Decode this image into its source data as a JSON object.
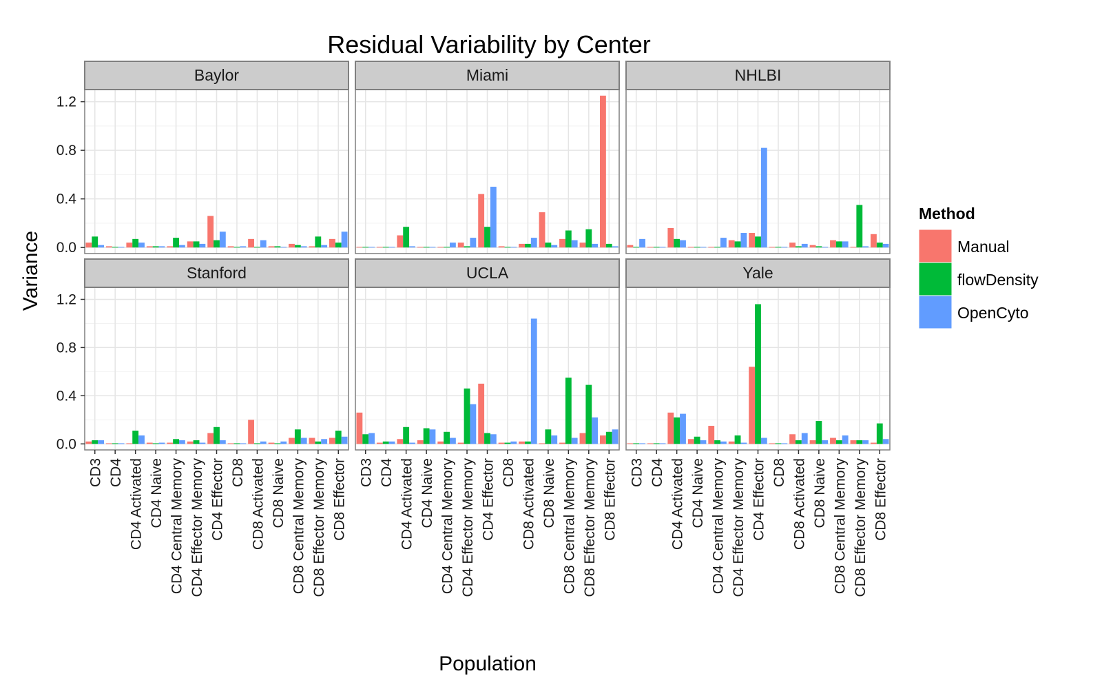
{
  "chart_data": {
    "type": "bar",
    "title": "Residual Variability by Center",
    "xlabel": "Population",
    "ylabel": "Variance",
    "ylim": [
      -0.05,
      1.3
    ],
    "yticks": [
      0.0,
      0.4,
      0.8,
      1.2
    ],
    "ytick_labels": [
      "0.0",
      "0.4",
      "0.8",
      "1.2"
    ],
    "grid": true,
    "legend": {
      "title": "Method",
      "position": "right",
      "entries": [
        {
          "name": "Manual",
          "color": "#F8766D"
        },
        {
          "name": "flowDensity",
          "color": "#00BA38"
        },
        {
          "name": "OpenCyto",
          "color": "#619CFF"
        }
      ]
    },
    "categories": [
      "CD3",
      "CD4",
      "CD4 Activated",
      "CD4 Naive",
      "CD4 Central Memory",
      "CD4 Effector Memory",
      "CD4 Effector",
      "CD8",
      "CD8 Activated",
      "CD8 Naive",
      "CD8 Central Memory",
      "CD8 Effector Memory",
      "CD8 Effector"
    ],
    "facets": [
      {
        "name": "Baylor",
        "series": [
          {
            "name": "Manual",
            "values": [
              0.04,
              0.01,
              0.04,
              0.01,
              0.01,
              0.05,
              0.26,
              0.01,
              0.07,
              0.01,
              0.03,
              0.01,
              0.07
            ]
          },
          {
            "name": "flowDensity",
            "values": [
              0.09,
              0.005,
              0.07,
              0.01,
              0.08,
              0.05,
              0.06,
              0.005,
              0.005,
              0.01,
              0.02,
              0.09,
              0.04
            ]
          },
          {
            "name": "OpenCyto",
            "values": [
              0.02,
              0.005,
              0.04,
              0.01,
              0.02,
              0.03,
              0.13,
              0.01,
              0.06,
              0.005,
              0.01,
              0.02,
              0.13
            ]
          }
        ]
      },
      {
        "name": "Miami",
        "series": [
          {
            "name": "Manual",
            "values": [
              0.005,
              0.005,
              0.1,
              0.005,
              0.005,
              0.04,
              0.44,
              0.01,
              0.03,
              0.29,
              0.07,
              0.04,
              1.25
            ]
          },
          {
            "name": "flowDensity",
            "values": [
              0.005,
              0.005,
              0.17,
              0.005,
              0.005,
              0.01,
              0.17,
              0.005,
              0.03,
              0.04,
              0.14,
              0.15,
              0.03
            ]
          },
          {
            "name": "OpenCyto",
            "values": [
              0.005,
              0.005,
              0.01,
              0.005,
              0.04,
              0.08,
              0.5,
              0.005,
              0.08,
              0.02,
              0.06,
              0.03,
              0.01
            ]
          }
        ]
      },
      {
        "name": "NHLBI",
        "series": [
          {
            "name": "Manual",
            "values": [
              0.02,
              0.005,
              0.16,
              0.005,
              0.005,
              0.06,
              0.12,
              0.005,
              0.04,
              0.02,
              0.06,
              0.005,
              0.11
            ]
          },
          {
            "name": "flowDensity",
            "values": [
              0.005,
              0.005,
              0.07,
              0.005,
              0.005,
              0.05,
              0.09,
              0.005,
              0.01,
              0.01,
              0.05,
              0.35,
              0.04
            ]
          },
          {
            "name": "OpenCyto",
            "values": [
              0.07,
              0.005,
              0.06,
              0.005,
              0.08,
              0.12,
              0.82,
              0.005,
              0.03,
              0.005,
              0.05,
              0.01,
              0.03
            ]
          }
        ]
      },
      {
        "name": "Stanford",
        "series": [
          {
            "name": "Manual",
            "values": [
              0.02,
              0.005,
              0.005,
              0.01,
              0.01,
              0.02,
              0.09,
              0.005,
              0.2,
              0.01,
              0.05,
              0.05,
              0.05
            ]
          },
          {
            "name": "flowDensity",
            "values": [
              0.03,
              0.005,
              0.11,
              0.005,
              0.04,
              0.03,
              0.14,
              0.005,
              0.005,
              0.005,
              0.12,
              0.02,
              0.11
            ]
          },
          {
            "name": "OpenCyto",
            "values": [
              0.03,
              0.005,
              0.07,
              0.01,
              0.03,
              0.01,
              0.03,
              0.005,
              0.02,
              0.02,
              0.05,
              0.04,
              0.06
            ]
          }
        ]
      },
      {
        "name": "UCLA",
        "series": [
          {
            "name": "Manual",
            "values": [
              0.26,
              0.01,
              0.04,
              0.03,
              0.02,
              0.01,
              0.5,
              0.01,
              0.02,
              0.005,
              0.01,
              0.09,
              0.07
            ]
          },
          {
            "name": "flowDensity",
            "values": [
              0.08,
              0.02,
              0.14,
              0.13,
              0.1,
              0.46,
              0.09,
              0.01,
              0.02,
              0.12,
              0.55,
              0.49,
              0.1
            ]
          },
          {
            "name": "OpenCyto",
            "values": [
              0.09,
              0.02,
              0.01,
              0.12,
              0.05,
              0.33,
              0.08,
              0.02,
              1.04,
              0.07,
              0.05,
              0.22,
              0.12
            ]
          }
        ]
      },
      {
        "name": "Yale",
        "series": [
          {
            "name": "Manual",
            "values": [
              0.005,
              0.005,
              0.26,
              0.04,
              0.15,
              0.02,
              0.64,
              0.005,
              0.08,
              0.03,
              0.05,
              0.03,
              0.01
            ]
          },
          {
            "name": "flowDensity",
            "values": [
              0.005,
              0.005,
              0.22,
              0.06,
              0.03,
              0.07,
              1.16,
              0.005,
              0.03,
              0.19,
              0.03,
              0.03,
              0.17
            ]
          },
          {
            "name": "OpenCyto",
            "values": [
              0.005,
              0.005,
              0.25,
              0.03,
              0.02,
              0.01,
              0.05,
              0.005,
              0.09,
              0.03,
              0.07,
              0.03,
              0.04
            ]
          }
        ]
      }
    ]
  }
}
